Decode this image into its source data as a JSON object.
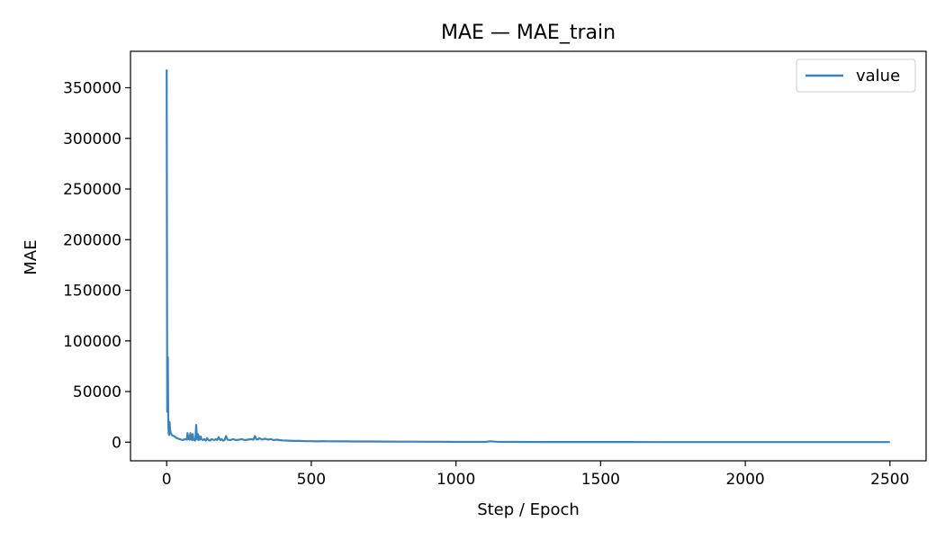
{
  "chart_data": {
    "type": "line",
    "title": "MAE — MAE_train",
    "xlabel": "Step / Epoch",
    "ylabel": "MAE",
    "xlim": [
      -125,
      2625
    ],
    "ylim": [
      -18400,
      386000
    ],
    "xticks": [
      0,
      500,
      1000,
      1500,
      2000,
      2500
    ],
    "yticks": [
      0,
      50000,
      100000,
      150000,
      200000,
      250000,
      300000,
      350000
    ],
    "legend": {
      "position": "top-right",
      "entries": [
        "value"
      ]
    },
    "grid": false,
    "series": [
      {
        "name": "value",
        "color": "#3a84bb",
        "x": [
          0,
          2,
          4,
          5,
          6,
          7,
          8,
          10,
          12,
          14,
          16,
          18,
          20,
          25,
          30,
          35,
          40,
          45,
          50,
          55,
          60,
          65,
          70,
          72,
          75,
          78,
          80,
          82,
          85,
          88,
          90,
          92,
          95,
          98,
          100,
          102,
          105,
          108,
          110,
          112,
          115,
          118,
          120,
          125,
          130,
          135,
          140,
          145,
          150,
          155,
          160,
          165,
          170,
          175,
          180,
          185,
          190,
          195,
          200,
          205,
          210,
          220,
          230,
          240,
          250,
          260,
          270,
          280,
          290,
          300,
          305,
          310,
          315,
          320,
          330,
          340,
          350,
          360,
          370,
          380,
          390,
          400,
          420,
          440,
          460,
          480,
          500,
          520,
          540,
          560,
          580,
          600,
          620,
          650,
          700,
          750,
          800,
          850,
          900,
          950,
          1000,
          1050,
          1100,
          1120,
          1140,
          1160,
          1200,
          1300,
          1400,
          1500,
          1600,
          1700,
          1800,
          1900,
          2000,
          2100,
          2200,
          2300,
          2400,
          2500
        ],
        "y": [
          368000,
          30000,
          84000,
          40000,
          15000,
          9000,
          7000,
          20000,
          12000,
          9000,
          8000,
          7000,
          6500,
          6000,
          5000,
          4000,
          3500,
          3000,
          2500,
          2200,
          2500,
          3000,
          2500,
          9000,
          3000,
          6000,
          2500,
          9000,
          3000,
          2000,
          8000,
          3500,
          2000,
          1500,
          5000,
          17000,
          3000,
          8000,
          2000,
          6000,
          2500,
          5500,
          3000,
          2000,
          3000,
          1500,
          4000,
          2000,
          1500,
          3000,
          2500,
          2000,
          3000,
          2000,
          5000,
          2000,
          3000,
          1500,
          2000,
          6000,
          2500,
          2000,
          3000,
          2000,
          2500,
          3000,
          2000,
          2500,
          3000,
          2500,
          6000,
          3000,
          2500,
          4000,
          2500,
          3500,
          2500,
          3000,
          2000,
          2500,
          2000,
          1800,
          1500,
          1200,
          1200,
          1000,
          1000,
          800,
          1000,
          900,
          800,
          900,
          800,
          700,
          700,
          600,
          500,
          500,
          400,
          400,
          300,
          300,
          300,
          900,
          400,
          300,
          250,
          200,
          180,
          150,
          150,
          130,
          120,
          110,
          100,
          100,
          90,
          80,
          80,
          80
        ]
      }
    ]
  }
}
